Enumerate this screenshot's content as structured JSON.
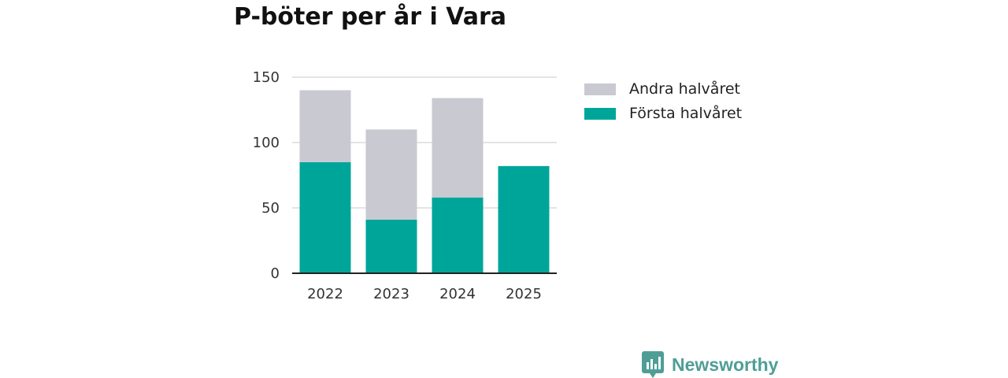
{
  "chart_data": {
    "type": "bar",
    "stacked": true,
    "title": "P-böter per år i Vara",
    "categories": [
      "2022",
      "2023",
      "2024",
      "2025"
    ],
    "series": [
      {
        "name": "Första halvåret",
        "color": "#00a59a",
        "values": [
          85,
          41,
          58,
          82
        ]
      },
      {
        "name": "Andra halvåret",
        "color": "#c9c9d1",
        "values": [
          55,
          69,
          76,
          0
        ]
      }
    ],
    "y_ticks": [
      0,
      50,
      100,
      150
    ],
    "ylim": [
      0,
      150
    ],
    "xlabel": "",
    "ylabel": "",
    "grid": true,
    "legend": {
      "position": "right",
      "items": [
        {
          "label": "Andra halvåret",
          "color": "#c9c9d1"
        },
        {
          "label": "Första halvåret",
          "color": "#00a59a"
        }
      ]
    }
  },
  "brand": {
    "name": "Newsworthy",
    "color": "#4f9e96"
  }
}
